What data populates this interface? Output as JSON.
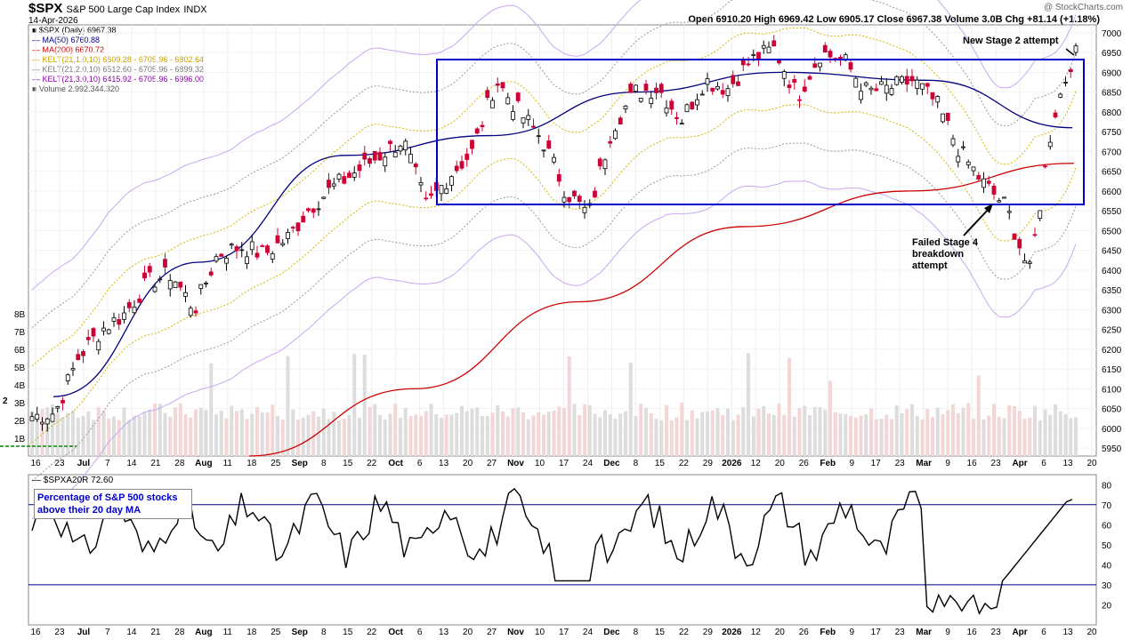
{
  "header": {
    "symbol": "$SPX",
    "name": "S&P 500 Large Cap Index",
    "exchange": "INDX",
    "date": "14-Apr-2026",
    "brand": "@ StockCharts.com",
    "ohlc": "Open 6910.20  High 6969.42  Low 6905.17  Close 6967.38  Volume 3.0B  Chg +81.14 (+1.18%)"
  },
  "legend": [
    {
      "text": "■ $SPX (Daily) 6967.38",
      "color": "#000000"
    },
    {
      "text": "— MA(50) 6760.88",
      "color": "#000080"
    },
    {
      "text": "— MA(200) 6670.72",
      "color": "#cc0000"
    },
    {
      "text": "— KELT(21,1.0,10) 6609.28 - 6705.96 - 6802.64",
      "color": "#c8a000"
    },
    {
      "text": "— KELT(21,2.0,10) 6512.60 - 6705.96 - 6899.32",
      "color": "#777777"
    },
    {
      "text": "— KELT(21,3.0,10) 6415.92 - 6705.96 - 6996.00",
      "color": "#8800aa"
    },
    {
      "text": "■ Volume 2,992,344,320",
      "color": "#555555"
    }
  ],
  "annotations": {
    "stage2": "New Stage 2 attempt",
    "stage4": [
      "Failed Stage 4",
      "breakdown",
      "attempt"
    ]
  },
  "indicator": {
    "title": "— $SPXA20R 72.60",
    "box": "Percentage of S&P 500 stocks above their 20 day MA",
    "side_label": "2"
  },
  "chart_data": [
    {
      "type": "candlestick",
      "title": "$SPX S&P 500 Large Cap Index",
      "ylim": [
        5930,
        7020
      ],
      "y_ticks": [
        5950,
        6000,
        6050,
        6100,
        6150,
        6200,
        6250,
        6300,
        6350,
        6400,
        6450,
        6500,
        6550,
        6600,
        6650,
        6700,
        6750,
        6800,
        6850,
        6900,
        6950,
        7000
      ],
      "volume_ticks": [
        "1B",
        "2B",
        "3B",
        "4B",
        "5B",
        "6B",
        "7B",
        "8B"
      ],
      "x_tick_labels": [
        "16",
        "23",
        "Jul",
        "7",
        "14",
        "21",
        "28",
        "Aug",
        "11",
        "18",
        "25",
        "Sep",
        "8",
        "15",
        "22",
        "Oct",
        "6",
        "13",
        "20",
        "27",
        "Nov",
        "10",
        "17",
        "24",
        "Dec",
        "8",
        "15",
        "22",
        "29",
        "2026",
        "12",
        "20",
        "26",
        "Feb",
        "9",
        "17",
        "23",
        "Mar",
        "9",
        "16",
        "23",
        "Apr",
        "6",
        "13",
        "20"
      ],
      "close_series": [
        {
          "x": "Jun 16",
          "y": 6030
        },
        {
          "x": "Jun 23",
          "y": 6040
        },
        {
          "x": "Jun 30",
          "y": 6180
        },
        {
          "x": "Jul 7",
          "y": 6250
        },
        {
          "x": "Jul 14",
          "y": 6290
        },
        {
          "x": "Jul 21",
          "y": 6370
        },
        {
          "x": "Jul 28",
          "y": 6390
        },
        {
          "x": "Aug 4",
          "y": 6300
        },
        {
          "x": "Aug 11",
          "y": 6440
        },
        {
          "x": "Aug 18",
          "y": 6460
        },
        {
          "x": "Aug 25",
          "y": 6440
        },
        {
          "x": "Sep 1",
          "y": 6480
        },
        {
          "x": "Sep 8",
          "y": 6560
        },
        {
          "x": "Sep 15",
          "y": 6610
        },
        {
          "x": "Sep 22",
          "y": 6650
        },
        {
          "x": "Sep 29",
          "y": 6690
        },
        {
          "x": "Oct 6",
          "y": 6730
        },
        {
          "x": "Oct 10",
          "y": 6560
        },
        {
          "x": "Oct 13",
          "y": 6640
        },
        {
          "x": "Oct 20",
          "y": 6700
        },
        {
          "x": "Oct 27",
          "y": 6880
        },
        {
          "x": "Nov 3",
          "y": 6800
        },
        {
          "x": "Nov 10",
          "y": 6730
        },
        {
          "x": "Nov 17",
          "y": 6600
        },
        {
          "x": "Nov 20",
          "y": 6540
        },
        {
          "x": "Nov 24",
          "y": 6760
        },
        {
          "x": "Dec 1",
          "y": 6850
        },
        {
          "x": "Dec 8",
          "y": 6860
        },
        {
          "x": "Dec 15",
          "y": 6780
        },
        {
          "x": "Dec 22",
          "y": 6880
        },
        {
          "x": "Dec 29",
          "y": 6860
        },
        {
          "x": "Jan 5",
          "y": 6930
        },
        {
          "x": "Jan 12",
          "y": 6960
        },
        {
          "x": "Jan 20",
          "y": 6840
        },
        {
          "x": "Jan 26",
          "y": 6950
        },
        {
          "x": "Feb 2",
          "y": 6930
        },
        {
          "x": "Feb 9",
          "y": 6850
        },
        {
          "x": "Feb 17",
          "y": 6860
        },
        {
          "x": "Feb 23",
          "y": 6880
        },
        {
          "x": "Mar 2",
          "y": 6820
        },
        {
          "x": "Mar 9",
          "y": 6700
        },
        {
          "x": "Mar 16",
          "y": 6620
        },
        {
          "x": "Mar 23",
          "y": 6560
        },
        {
          "x": "Mar 30",
          "y": 6390
        },
        {
          "x": "Apr 6",
          "y": 6780
        },
        {
          "x": "Apr 13",
          "y": 6967
        }
      ],
      "ma50_series": [
        6080,
        6420,
        6690,
        6740,
        6850,
        6900,
        6880,
        6760
      ],
      "ma200_series": [
        5930,
        6100,
        6320,
        6510,
        6600,
        6670
      ]
    },
    {
      "type": "line",
      "title": "$SPXA20R",
      "ylim": [
        10,
        85
      ],
      "y_ticks": [
        20,
        30,
        40,
        50,
        60,
        70,
        80
      ],
      "reference_lines": [
        30,
        70
      ],
      "last_value": 72.6
    }
  ]
}
